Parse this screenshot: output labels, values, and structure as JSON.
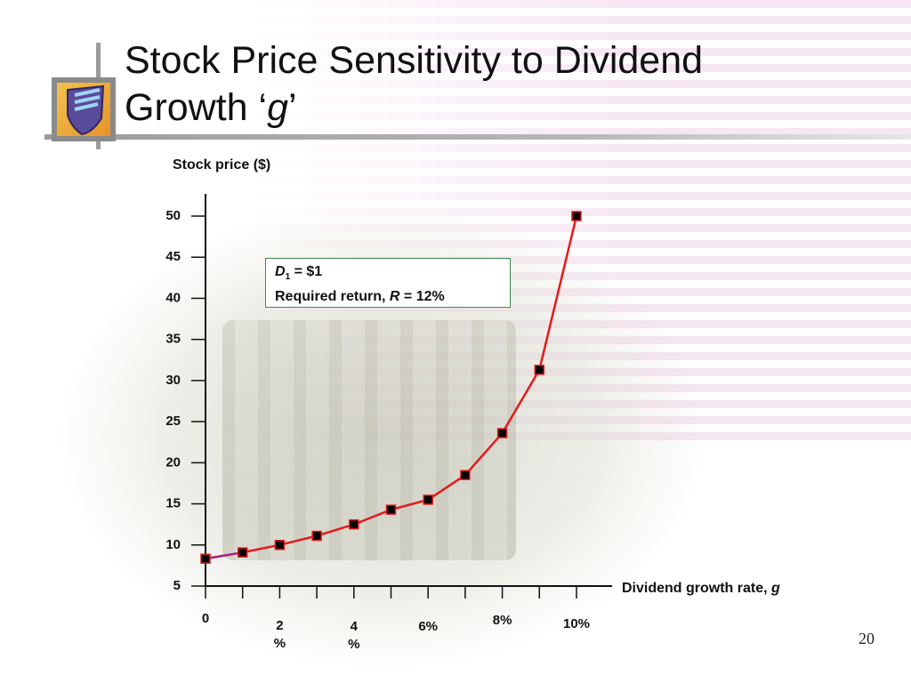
{
  "slide": {
    "title_line1": "Stock Price Sensitivity to Dividend",
    "title_line2": "Growth ‘",
    "title_g": "g",
    "title_close": "’",
    "page_number": "20"
  },
  "info_box": {
    "d_symbol": "D",
    "d_subscript": "1",
    "d_value": " = $1",
    "r_prefix": "Required return, ",
    "r_symbol": "R",
    "r_value": " = 12%"
  },
  "chart_data": {
    "type": "line",
    "ylabel": "Stock price ($)",
    "xlabel_prefix": "Dividend growth rate, ",
    "xlabel_var": "g",
    "ylim": [
      5,
      50
    ],
    "xlim": [
      0,
      10
    ],
    "y_ticks": [
      5,
      10,
      15,
      20,
      25,
      30,
      35,
      40,
      45,
      50
    ],
    "x_ticks": [
      0,
      1,
      2,
      3,
      4,
      5,
      6,
      7,
      8,
      9,
      10
    ],
    "x_tick_labels": [
      {
        "x": 0,
        "lines": [
          "0"
        ]
      },
      {
        "x": 2,
        "lines": [
          "2",
          "%"
        ]
      },
      {
        "x": 4,
        "lines": [
          "4",
          "%"
        ]
      },
      {
        "x": 6,
        "lines": [
          "6%"
        ]
      },
      {
        "x": 8,
        "lines": [
          "8%"
        ]
      },
      {
        "x": 10,
        "lines": [
          "10%"
        ]
      }
    ],
    "series": [
      {
        "x": [
          0,
          1,
          2,
          3,
          4,
          5,
          6,
          7,
          8,
          9,
          10
        ],
        "y": [
          8.33,
          9.09,
          10.0,
          11.11,
          12.5,
          14.29,
          15.5,
          18.5,
          23.6,
          31.3,
          50.0
        ],
        "color": "#e21a1a",
        "first_segment_color": "#b0197a",
        "marker_color": "#000000"
      }
    ]
  }
}
